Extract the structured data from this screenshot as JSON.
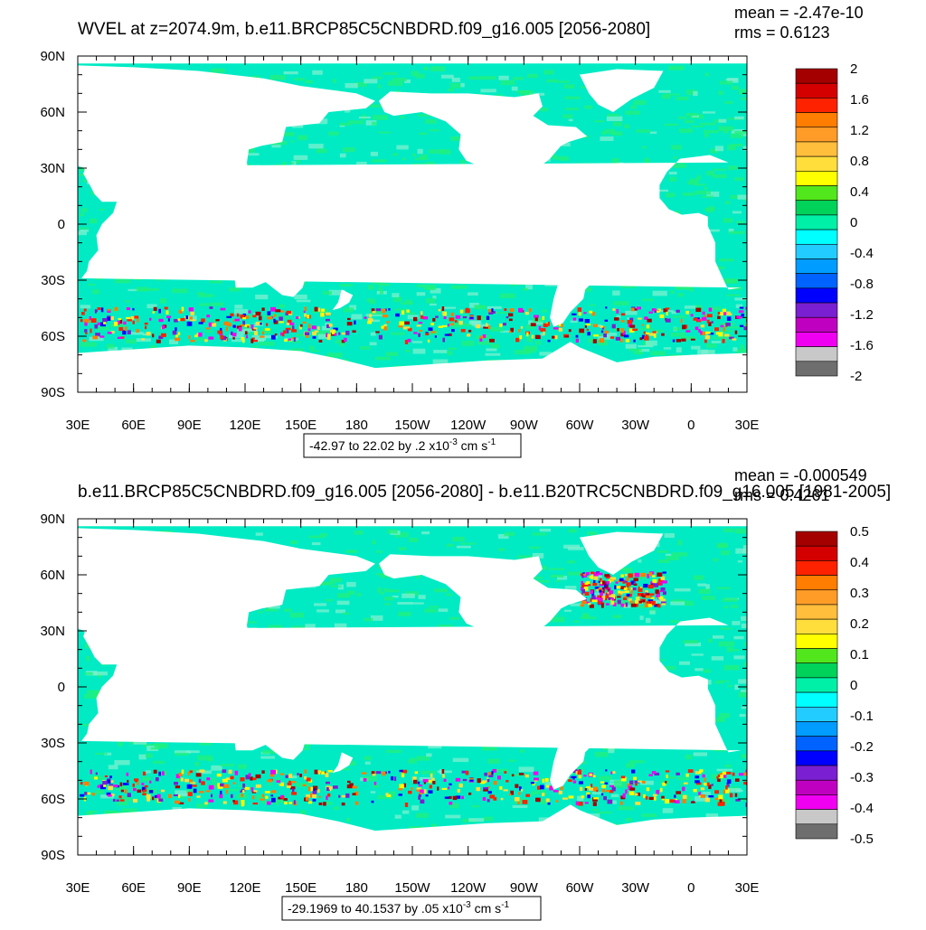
{
  "chart_data": [
    {
      "type": "heatmap",
      "title": "WVEL at z=2074.9m, b.e11.BRCP85C5CNBDRD.f09_g16.005 [2056-2080]",
      "stats": {
        "mean": "mean = -2.47e-10",
        "rms": "rms = 0.6123"
      },
      "x_ticks": [
        "30E",
        "60E",
        "90E",
        "120E",
        "150E",
        "180",
        "150W",
        "120W",
        "90W",
        "60W",
        "30W",
        "0",
        "30E"
      ],
      "y_ticks": [
        "90N",
        "60N",
        "30N",
        "0",
        "30S",
        "60S",
        "90S"
      ],
      "xlim": [
        30,
        390
      ],
      "ylim": [
        -90,
        90
      ],
      "colorbar_labels": [
        "2",
        "1.6",
        "1.2",
        "0.8",
        "0.4",
        "0",
        "-0.4",
        "-0.8",
        "-1.2",
        "-1.6",
        "-2"
      ],
      "colorbar_colors": [
        "#a50000",
        "#d40000",
        "#ff2200",
        "#ff7d00",
        "#ff9c28",
        "#ffbe3c",
        "#ffde3c",
        "#ffff00",
        "#52e61c",
        "#00d25a",
        "#00f0a8",
        "#00ffff",
        "#22ccff",
        "#009cff",
        "#0063ff",
        "#0000ff",
        "#7a1fd1",
        "#c000c0",
        "#f000f0",
        "#c8c8c8",
        "#6e6e6e"
      ],
      "range_note": {
        "text": "-42.97 to 22.02 by .2 x10",
        "exp": "-3",
        "unit": " cm s",
        "unit_exp": "-1"
      },
      "field_note": "Ocean dominated by near-zero values (-0.4 to 0.4, cyan/green); strong positive/negative extremes along the Southern Ocean near 50-60S; land masked in white."
    },
    {
      "type": "heatmap",
      "title": "b.e11.BRCP85C5CNBDRD.f09_g16.005 [2056-2080] - b.e11.B20TRC5CNBDRD.f09_g16.005 [1981-2005]",
      "stats": {
        "mean": "mean = -0.000549",
        "rms": "rms = 0.4261"
      },
      "x_ticks": [
        "30E",
        "60E",
        "90E",
        "120E",
        "150E",
        "180",
        "150W",
        "120W",
        "90W",
        "60W",
        "30W",
        "0",
        "30E"
      ],
      "y_ticks": [
        "90N",
        "60N",
        "30N",
        "0",
        "30S",
        "60S",
        "90S"
      ],
      "xlim": [
        30,
        390
      ],
      "ylim": [
        -90,
        90
      ],
      "colorbar_labels": [
        "0.5",
        "0.4",
        "0.3",
        "0.2",
        "0.1",
        "0",
        "-0.1",
        "-0.2",
        "-0.3",
        "-0.4",
        "-0.5"
      ],
      "colorbar_colors": [
        "#a50000",
        "#d40000",
        "#ff2200",
        "#ff7d00",
        "#ff9c28",
        "#ffbe3c",
        "#ffde3c",
        "#ffff00",
        "#52e61c",
        "#00d25a",
        "#00f0a8",
        "#00ffff",
        "#22ccff",
        "#009cff",
        "#0063ff",
        "#0000ff",
        "#7a1fd1",
        "#c000c0",
        "#f000f0",
        "#c8c8c8",
        "#6e6e6e"
      ],
      "range_note": {
        "text": "-29.1969 to 40.1537 by .05 x10",
        "exp": "-3",
        "unit": " cm s",
        "unit_exp": "-1"
      },
      "field_note": "Difference field mostly near zero (cyan/green); extremes along the Southern Ocean and in the Labrador / North Atlantic region; land masked in white."
    }
  ],
  "colors": {
    "ocean_base": "#00ebc4",
    "ocean_alt": "#22f07a",
    "land": "#ffffff",
    "frame": "#000000"
  }
}
